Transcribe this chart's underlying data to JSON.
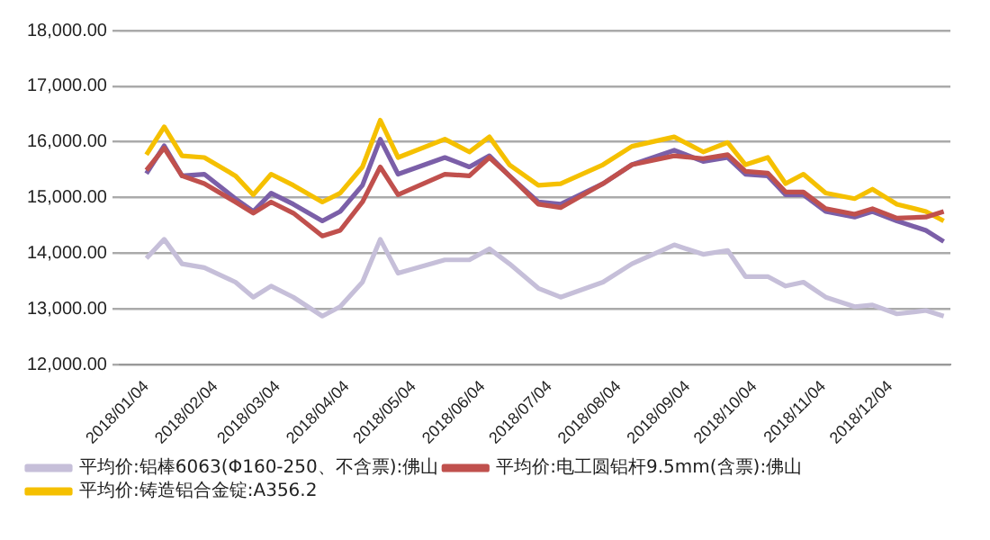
{
  "chart_data": {
    "type": "line",
    "x": [
      "2018-01-04",
      "2018-01-12",
      "2018-01-20",
      "2018-01-30",
      "2018-02-13",
      "2018-02-21",
      "2018-03-01",
      "2018-03-11",
      "2018-03-24",
      "2018-04-01",
      "2018-04-11",
      "2018-04-19",
      "2018-04-27",
      "2018-05-18",
      "2018-05-29",
      "2018-06-07",
      "2018-06-16",
      "2018-06-29",
      "2018-07-09",
      "2018-07-28",
      "2018-08-10",
      "2018-08-29",
      "2018-09-11",
      "2018-09-22",
      "2018-09-30",
      "2018-10-10",
      "2018-10-18",
      "2018-10-26",
      "2018-11-05",
      "2018-11-18",
      "2018-11-26",
      "2018-12-07",
      "2018-12-20",
      "2018-12-28"
    ],
    "series": [
      {
        "name": "平均价:铝棒6063(Φ160-250、不含票):佛山",
        "color": "#c6bfd9",
        "values": [
          13910,
          14250,
          13810,
          13740,
          13480,
          13210,
          13410,
          13210,
          12870,
          13040,
          13480,
          14250,
          13640,
          13880,
          13880,
          14080,
          13810,
          13370,
          13210,
          13480,
          13810,
          14150,
          13980,
          14050,
          13580,
          13580,
          13410,
          13480,
          13210,
          13040,
          13070,
          12910,
          12970,
          12870
        ]
      },
      {
        "name": "平均价:电工圆铝杆9.5mm(含票):佛山",
        "color": "#c0504d",
        "values": [
          15490,
          15890,
          15390,
          15250,
          14920,
          14720,
          14920,
          14720,
          14310,
          14410,
          14920,
          15550,
          15050,
          15420,
          15390,
          15720,
          15390,
          14880,
          14820,
          15250,
          15590,
          15750,
          15700,
          15770,
          15470,
          15440,
          15100,
          15100,
          14800,
          14700,
          14800,
          14630,
          14650,
          14750
        ]
      },
      {
        "name": "平均价:铸造铝合金锭:A356.2",
        "color": "#f5c000",
        "values": [
          15770,
          16270,
          15750,
          15720,
          15390,
          15050,
          15420,
          15220,
          14920,
          15080,
          15550,
          16390,
          15720,
          16050,
          15820,
          16090,
          15590,
          15220,
          15250,
          15590,
          15920,
          16090,
          15820,
          15990,
          15590,
          15720,
          15250,
          15420,
          15080,
          14980,
          15150,
          14880,
          14750,
          14580
        ]
      },
      {
        "color": "#7b5fa8",
        "values": [
          15430,
          15930,
          15390,
          15420,
          14980,
          14750,
          15080,
          14880,
          14580,
          14750,
          15220,
          16050,
          15420,
          15720,
          15550,
          15750,
          15390,
          14920,
          14880,
          15250,
          15590,
          15850,
          15650,
          15720,
          15420,
          15390,
          15050,
          15050,
          14750,
          14650,
          14750,
          14580,
          14410,
          14210
        ]
      }
    ],
    "xlim": [
      "2017-12-23",
      "2018-12-31"
    ],
    "xticks": [
      {
        "value": "2018-01-04",
        "label": "2018/01/04"
      },
      {
        "value": "2018-02-04",
        "label": "2018/02/04"
      },
      {
        "value": "2018-03-04",
        "label": "2018/03/04"
      },
      {
        "value": "2018-04-04",
        "label": "2018/04/04"
      },
      {
        "value": "2018-05-04",
        "label": "2018/05/04"
      },
      {
        "value": "2018-06-04",
        "label": "2018/06/04"
      },
      {
        "value": "2018-07-04",
        "label": "2018/07/04"
      },
      {
        "value": "2018-08-04",
        "label": "2018/08/04"
      },
      {
        "value": "2018-09-04",
        "label": "2018/09/04"
      },
      {
        "value": "2018-10-04",
        "label": "2018/10/04"
      },
      {
        "value": "2018-11-04",
        "label": "2018/11/04"
      },
      {
        "value": "2018-12-04",
        "label": "2018/12/04"
      }
    ],
    "ylim": [
      12000,
      18000
    ],
    "yticks": [
      {
        "value": 12000,
        "label": "12,000.00"
      },
      {
        "value": 13000,
        "label": "13,000.00"
      },
      {
        "value": 14000,
        "label": "14,000.00"
      },
      {
        "value": 15000,
        "label": "15,000.00"
      },
      {
        "value": 16000,
        "label": "16,000.00"
      },
      {
        "value": 17000,
        "label": "17,000.00"
      },
      {
        "value": 18000,
        "label": "18,000.00"
      }
    ],
    "grid": "y",
    "legend": "bottom",
    "marker": "none",
    "line_style": "solid"
  }
}
